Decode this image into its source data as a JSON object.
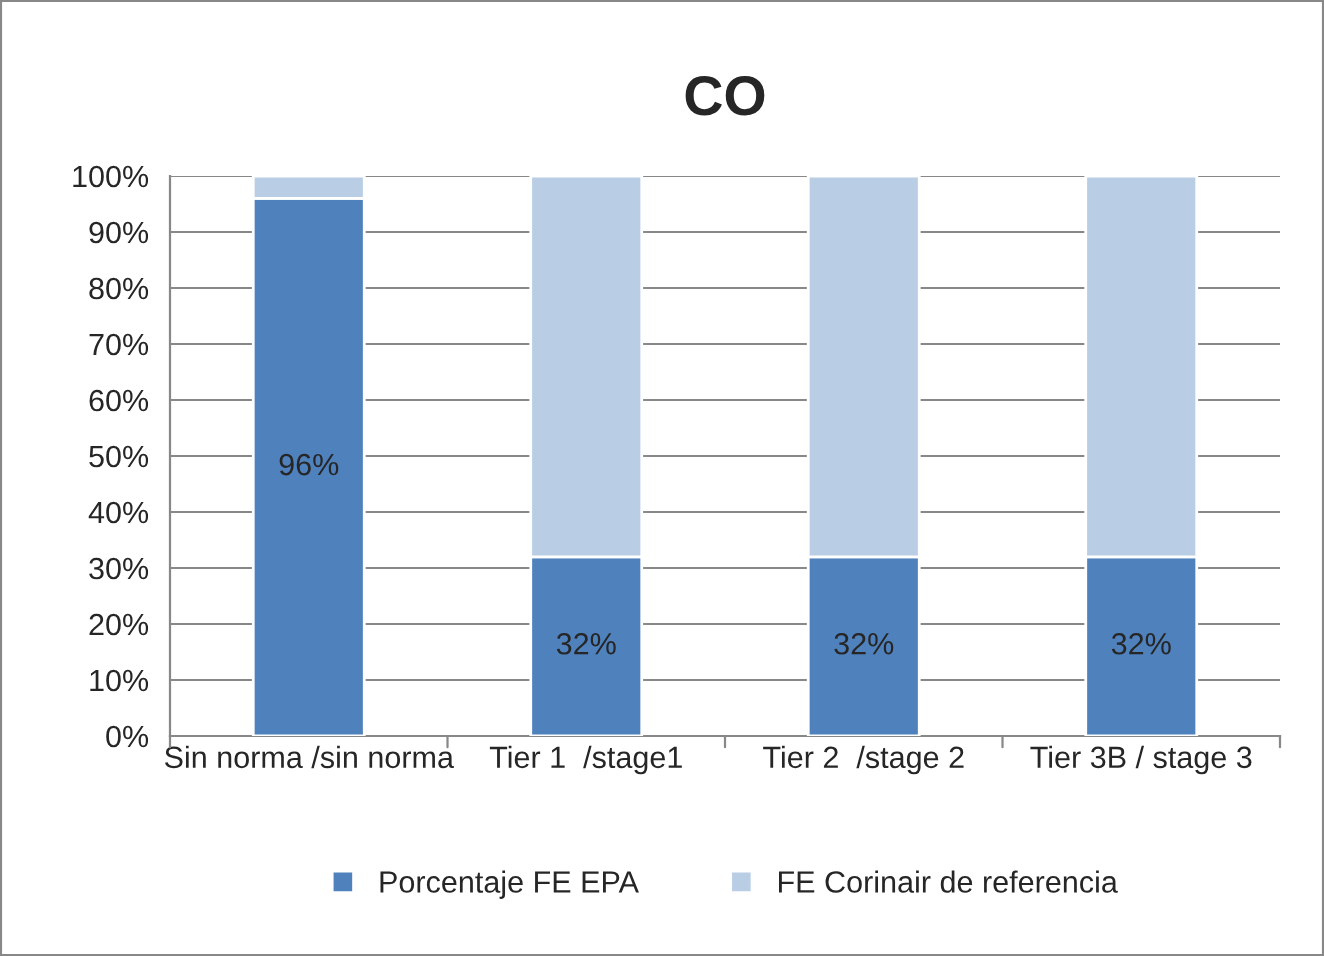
{
  "chart_data": {
    "type": "bar",
    "title": "CO",
    "stacked": true,
    "categories": [
      "Sin norma /sin norma",
      "Tier 1  /stage1",
      "Tier 2  /stage 2",
      "Tier 3B / stage 3"
    ],
    "series": [
      {
        "name": "Porcentaje FE EPA",
        "color": "#4f81bd",
        "values": [
          96,
          32,
          32,
          32
        ],
        "value_labels": [
          "96%",
          "32%",
          "32%",
          "32%"
        ]
      },
      {
        "name": "FE Corinair de referencia",
        "color": "#b9cde5",
        "values": [
          4,
          68,
          68,
          68
        ]
      }
    ],
    "ylim": [
      0,
      100
    ],
    "yticks": [
      {
        "value": 0,
        "label": "0%"
      },
      {
        "value": 10,
        "label": "10%"
      },
      {
        "value": 20,
        "label": "20%"
      },
      {
        "value": 30,
        "label": "30%"
      },
      {
        "value": 40,
        "label": "40%"
      },
      {
        "value": 50,
        "label": "50%"
      },
      {
        "value": 60,
        "label": "60%"
      },
      {
        "value": 70,
        "label": "70%"
      },
      {
        "value": 80,
        "label": "80%"
      },
      {
        "value": 90,
        "label": "90%"
      },
      {
        "value": 100,
        "label": "100%"
      }
    ],
    "grid": "y",
    "legend": "bottom"
  }
}
